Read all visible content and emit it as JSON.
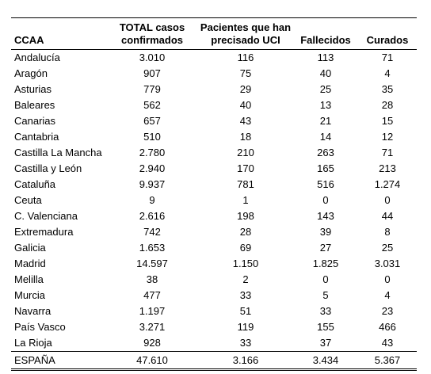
{
  "table": {
    "headers": [
      {
        "line1": "",
        "line2": "CCAA"
      },
      {
        "line1": "TOTAL casos",
        "line2": "confirmados"
      },
      {
        "line1": "Pacientes que han",
        "line2": "precisado UCI"
      },
      {
        "line1": "",
        "line2": "Fallecidos"
      },
      {
        "line1": "",
        "line2": "Curados"
      }
    ],
    "rows": [
      [
        "Andalucía",
        "3.010",
        "116",
        "113",
        "71"
      ],
      [
        "Aragón",
        "907",
        "75",
        "40",
        "4"
      ],
      [
        "Asturias",
        "779",
        "29",
        "25",
        "35"
      ],
      [
        "Baleares",
        "562",
        "40",
        "13",
        "28"
      ],
      [
        "Canarias",
        "657",
        "43",
        "21",
        "15"
      ],
      [
        "Cantabria",
        "510",
        "18",
        "14",
        "12"
      ],
      [
        "Castilla La Mancha",
        "2.780",
        "210",
        "263",
        "71"
      ],
      [
        "Castilla y León",
        "2.940",
        "170",
        "165",
        "213"
      ],
      [
        "Cataluña",
        "9.937",
        "781",
        "516",
        "1.274"
      ],
      [
        "Ceuta",
        "9",
        "1",
        "0",
        "0"
      ],
      [
        "C. Valenciana",
        "2.616",
        "198",
        "143",
        "44"
      ],
      [
        "Extremadura",
        "742",
        "28",
        "39",
        "8"
      ],
      [
        "Galicia",
        "1.653",
        "69",
        "27",
        "25"
      ],
      [
        "Madrid",
        "14.597",
        "1.150",
        "1.825",
        "3.031"
      ],
      [
        "Melilla",
        "38",
        "2",
        "0",
        "0"
      ],
      [
        "Murcia",
        "477",
        "33",
        "5",
        "4"
      ],
      [
        "Navarra",
        "1.197",
        "51",
        "33",
        "23"
      ],
      [
        "País Vasco",
        "3.271",
        "119",
        "155",
        "466"
      ],
      [
        "La Rioja",
        "928",
        "33",
        "37",
        "43"
      ]
    ],
    "total": [
      "ESPAÑA",
      "47.610",
      "3.166",
      "3.434",
      "5.367"
    ]
  }
}
